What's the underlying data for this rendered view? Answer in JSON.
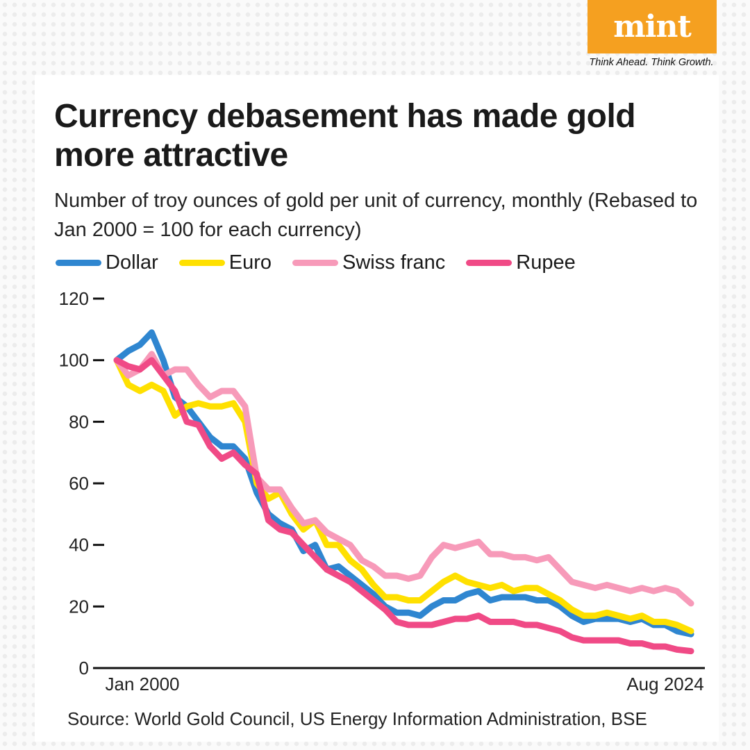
{
  "brand": {
    "logo_text": "mint",
    "tagline": "Think Ahead. Think Growth.",
    "color": "#f5a020"
  },
  "header": {
    "title": "Currency debasement has made gold more attractive",
    "subtitle": "Number of troy ounces of gold per unit of currency, monthly (Rebased to Jan 2000 = 100 for each currency)"
  },
  "source": "Source: World Gold Council, US Energy Information Administration, BSE",
  "chart_data": {
    "type": "line",
    "title": "Currency debasement has made gold more attractive",
    "ylabel": "",
    "xlabel": "",
    "ylim": [
      0,
      120
    ],
    "yticks": [
      0,
      20,
      40,
      60,
      80,
      100,
      120
    ],
    "xlim": [
      2000,
      2024.6
    ],
    "xtick_labels": [
      {
        "x": 2000,
        "label": "Jan 2000"
      },
      {
        "x": 2024.6,
        "label": "Aug 2024"
      }
    ],
    "x": [
      2000,
      2000.5,
      2001,
      2001.5,
      2002,
      2002.5,
      2003,
      2003.5,
      2004,
      2004.5,
      2005,
      2005.5,
      2006,
      2006.5,
      2007,
      2007.5,
      2008,
      2008.5,
      2009,
      2009.5,
      2010,
      2010.5,
      2011,
      2011.5,
      2012,
      2012.5,
      2013,
      2013.5,
      2014,
      2014.5,
      2015,
      2015.5,
      2016,
      2016.5,
      2017,
      2017.5,
      2018,
      2018.5,
      2019,
      2019.5,
      2020,
      2020.5,
      2021,
      2021.5,
      2022,
      2022.5,
      2023,
      2023.5,
      2024,
      2024.6
    ],
    "series": [
      {
        "name": "Dollar",
        "color": "#2f86d0",
        "values": [
          100,
          103,
          105,
          109,
          100,
          88,
          85,
          80,
          75,
          72,
          72,
          68,
          57,
          50,
          47,
          45,
          38,
          40,
          32,
          33,
          30,
          27,
          24,
          20,
          18,
          18,
          17,
          20,
          22,
          22,
          24,
          25,
          22,
          23,
          23,
          23,
          22,
          22,
          20,
          17,
          15,
          16,
          16,
          16,
          15,
          16,
          14,
          14,
          12,
          11
        ]
      },
      {
        "name": "Euro",
        "color": "#ffe000",
        "values": [
          100,
          92,
          90,
          92,
          90,
          82,
          85,
          86,
          85,
          85,
          86,
          80,
          60,
          55,
          57,
          50,
          45,
          48,
          40,
          40,
          35,
          32,
          27,
          23,
          23,
          22,
          22,
          25,
          28,
          30,
          28,
          27,
          26,
          27,
          25,
          26,
          26,
          24,
          22,
          19,
          17,
          17,
          18,
          17,
          16,
          17,
          15,
          15,
          14,
          12
        ]
      },
      {
        "name": "Swiss franc",
        "color": "#f79ab9",
        "values": [
          100,
          95,
          97,
          102,
          95,
          97,
          97,
          92,
          88,
          90,
          90,
          85,
          62,
          58,
          58,
          52,
          47,
          48,
          44,
          42,
          40,
          35,
          33,
          30,
          30,
          29,
          30,
          36,
          40,
          39,
          40,
          41,
          37,
          37,
          36,
          36,
          35,
          36,
          32,
          28,
          27,
          26,
          27,
          26,
          25,
          26,
          25,
          26,
          25,
          21
        ]
      },
      {
        "name": "Rupee",
        "color": "#f04a86",
        "values": [
          100,
          98,
          97,
          100,
          95,
          90,
          80,
          79,
          72,
          68,
          70,
          66,
          63,
          48,
          45,
          44,
          40,
          36,
          32,
          30,
          28,
          25,
          22,
          19,
          15,
          14,
          14,
          14,
          15,
          16,
          16,
          17,
          15,
          15,
          15,
          14,
          14,
          13,
          12,
          10,
          9,
          9,
          9,
          9,
          8,
          8,
          7,
          7,
          6,
          5.5
        ]
      }
    ],
    "legend": "top-left",
    "grid": false
  }
}
